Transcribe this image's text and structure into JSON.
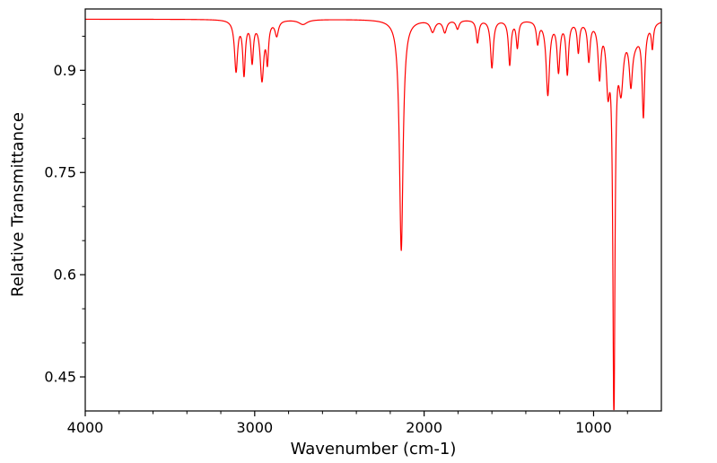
{
  "chart_data": {
    "type": "line",
    "xlabel": "Wavenumber (cm-1)",
    "ylabel": "Relative Transmittance",
    "xlim": [
      4000,
      600
    ],
    "ylim": [
      0.4,
      0.99
    ],
    "x_axis_reversed": true,
    "x_ticks": [
      4000,
      3000,
      2000,
      1000
    ],
    "x_minor_step": 200,
    "y_ticks": [
      0.45,
      0.6,
      0.75,
      0.9
    ],
    "y_minor_step": 0.05,
    "grid": false,
    "legend": false,
    "line_color": "#ff0000",
    "frame_color": "#000000",
    "baseline_transmittance": 0.975,
    "peaks_format": [
      "center_wavenumber_cm-1",
      "min_transmittance",
      "half_width_cm-1"
    ],
    "peaks": [
      [
        3110,
        0.901,
        11
      ],
      [
        3063,
        0.898,
        9
      ],
      [
        3015,
        0.917,
        9
      ],
      [
        2957,
        0.889,
        13
      ],
      [
        2925,
        0.92,
        8
      ],
      [
        2870,
        0.953,
        12
      ],
      [
        2715,
        0.968,
        30
      ],
      [
        2135,
        0.636,
        13
      ],
      [
        1950,
        0.958,
        16
      ],
      [
        1878,
        0.957,
        13
      ],
      [
        1803,
        0.962,
        11
      ],
      [
        1685,
        0.942,
        9
      ],
      [
        1600,
        0.905,
        10
      ],
      [
        1495,
        0.91,
        9
      ],
      [
        1450,
        0.936,
        8
      ],
      [
        1330,
        0.943,
        9
      ],
      [
        1270,
        0.867,
        12
      ],
      [
        1207,
        0.903,
        10
      ],
      [
        1155,
        0.899,
        9
      ],
      [
        1090,
        0.931,
        8
      ],
      [
        1028,
        0.919,
        9
      ],
      [
        965,
        0.898,
        10
      ],
      [
        915,
        0.89,
        12
      ],
      [
        880,
        0.405,
        7.5
      ],
      [
        838,
        0.89,
        16
      ],
      [
        780,
        0.908,
        11
      ],
      [
        760,
        0.948,
        45
      ],
      [
        706,
        0.846,
        9
      ],
      [
        653,
        0.94,
        7
      ]
    ]
  }
}
